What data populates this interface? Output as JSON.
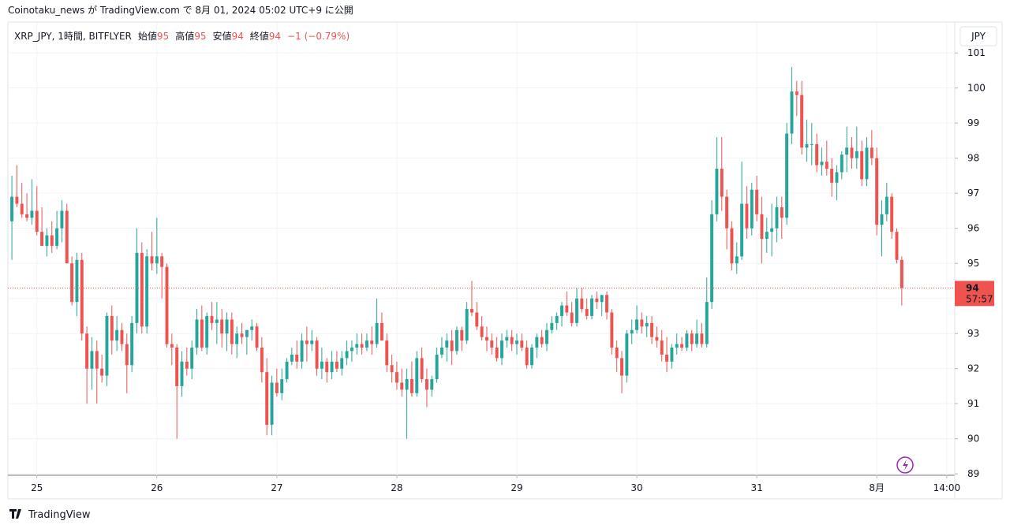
{
  "chart_data": {
    "type": "candlestick",
    "published": "Coinotaku_news が TradingView.com で 8月 01, 2024 05:02 UTC+9 に公開",
    "symbol": "XRP_JPY, 1時間, BITFLYER",
    "legend": [
      {
        "label": "始値",
        "value": "95"
      },
      {
        "label": "高値",
        "value": "95"
      },
      {
        "label": "安値",
        "value": "94"
      },
      {
        "label": "終値",
        "value": "94"
      }
    ],
    "change": "−1 (−0.79%)",
    "currency": "JPY",
    "price_label": {
      "value": 94.3,
      "label": "94"
    },
    "countdown": "57:57",
    "brand": "TradingView",
    "up_color": "#26a69a",
    "down_color": "#ef5350",
    "grid": true,
    "ylim": [
      88.96,
      101.88
    ],
    "yticks": [
      89,
      90,
      91,
      92,
      93,
      94,
      95,
      96,
      97,
      98,
      99,
      100,
      101
    ],
    "xlim": [
      -0.8,
      188.6
    ],
    "xticks": [
      {
        "value": 5,
        "label": "25"
      },
      {
        "value": 29,
        "label": "26"
      },
      {
        "value": 53,
        "label": "27"
      },
      {
        "value": 77,
        "label": "28"
      },
      {
        "value": 101,
        "label": "29"
      },
      {
        "value": 125,
        "label": "30"
      },
      {
        "value": 149,
        "label": "31"
      },
      {
        "value": 173,
        "label": "8月"
      },
      {
        "value": 187,
        "label": "14:00"
      }
    ],
    "ohlc": [
      [
        96.2,
        97.5,
        95.1,
        96.9
      ],
      [
        96.9,
        97.8,
        96.6,
        96.7
      ],
      [
        96.7,
        97.3,
        96.3,
        96.4
      ],
      [
        96.4,
        97.0,
        96.2,
        96.3
      ],
      [
        96.3,
        97.4,
        96.1,
        96.5
      ],
      [
        96.5,
        97.2,
        95.8,
        95.9
      ],
      [
        95.9,
        96.6,
        95.5,
        95.5
      ],
      [
        95.5,
        96.0,
        95.2,
        95.8
      ],
      [
        95.8,
        96.2,
        95.3,
        95.5
      ],
      [
        95.5,
        96.5,
        95.4,
        96.0
      ],
      [
        96.0,
        96.8,
        95.6,
        96.5
      ],
      [
        96.5,
        96.7,
        95.1,
        95.0
      ],
      [
        95.0,
        95.2,
        93.8,
        93.9
      ],
      [
        93.9,
        95.3,
        93.5,
        95.1
      ],
      [
        95.1,
        95.3,
        92.8,
        93.0
      ],
      [
        93.0,
        93.2,
        91.0,
        92.0
      ],
      [
        92.0,
        92.9,
        91.4,
        92.5
      ],
      [
        92.5,
        92.8,
        91.0,
        92.0
      ],
      [
        92.0,
        92.4,
        91.6,
        91.8
      ],
      [
        91.8,
        93.6,
        91.5,
        93.5
      ],
      [
        93.5,
        93.8,
        92.4,
        92.8
      ],
      [
        92.8,
        93.5,
        92.5,
        93.1
      ],
      [
        93.1,
        93.3,
        92.5,
        92.7
      ],
      [
        92.7,
        93.0,
        91.3,
        92.1
      ],
      [
        92.1,
        93.5,
        91.9,
        93.3
      ],
      [
        93.3,
        96.0,
        93.0,
        95.3
      ],
      [
        95.3,
        95.6,
        93.0,
        93.2
      ],
      [
        93.2,
        95.4,
        93.0,
        95.2
      ],
      [
        95.2,
        95.9,
        94.8,
        95.0
      ],
      [
        95.0,
        96.3,
        94.7,
        95.2
      ],
      [
        95.2,
        95.3,
        94.0,
        94.9
      ],
      [
        94.9,
        95.0,
        92.6,
        92.7
      ],
      [
        92.7,
        93.0,
        92.1,
        92.6
      ],
      [
        92.6,
        92.7,
        90.0,
        91.5
      ],
      [
        91.5,
        92.5,
        91.2,
        92.2
      ],
      [
        92.2,
        92.6,
        91.8,
        92.0
      ],
      [
        92.0,
        92.8,
        91.7,
        92.6
      ],
      [
        92.6,
        93.7,
        92.4,
        93.4
      ],
      [
        93.4,
        93.8,
        92.5,
        92.6
      ],
      [
        92.6,
        93.6,
        92.4,
        93.5
      ],
      [
        93.5,
        93.9,
        93.1,
        93.3
      ],
      [
        93.3,
        93.9,
        92.7,
        93.4
      ],
      [
        93.4,
        93.7,
        92.6,
        93.0
      ],
      [
        93.0,
        93.6,
        92.5,
        93.4
      ],
      [
        93.4,
        93.6,
        92.4,
        92.7
      ],
      [
        92.7,
        93.2,
        92.3,
        93.0
      ],
      [
        93.0,
        93.3,
        92.7,
        92.9
      ],
      [
        92.9,
        93.1,
        92.4,
        93.1
      ],
      [
        93.1,
        93.4,
        92.8,
        93.2
      ],
      [
        93.2,
        93.3,
        92.5,
        92.6
      ],
      [
        92.6,
        92.9,
        91.6,
        91.9
      ],
      [
        91.9,
        92.3,
        90.1,
        90.4
      ],
      [
        90.4,
        91.8,
        90.1,
        91.6
      ],
      [
        91.6,
        92.0,
        91.2,
        91.3
      ],
      [
        91.3,
        92.0,
        91.1,
        91.7
      ],
      [
        91.7,
        92.3,
        91.6,
        92.2
      ],
      [
        92.2,
        92.6,
        92.1,
        92.4
      ],
      [
        92.4,
        92.8,
        92.0,
        92.2
      ],
      [
        92.2,
        93.0,
        92.0,
        92.8
      ],
      [
        92.8,
        93.2,
        92.2,
        92.7
      ],
      [
        92.7,
        93.1,
        92.5,
        92.8
      ],
      [
        92.8,
        92.9,
        91.8,
        92.0
      ],
      [
        92.0,
        92.6,
        91.7,
        92.2
      ],
      [
        92.2,
        92.3,
        91.6,
        91.9
      ],
      [
        91.9,
        92.5,
        91.7,
        92.2
      ],
      [
        92.2,
        92.5,
        91.9,
        92.0
      ],
      [
        92.0,
        92.5,
        91.8,
        92.3
      ],
      [
        92.3,
        92.8,
        92.1,
        92.5
      ],
      [
        92.5,
        92.8,
        92.2,
        92.6
      ],
      [
        92.6,
        93.0,
        92.4,
        92.7
      ],
      [
        92.7,
        93.0,
        92.4,
        92.6
      ],
      [
        92.6,
        93.0,
        92.5,
        92.8
      ],
      [
        92.8,
        93.2,
        92.4,
        92.7
      ],
      [
        92.7,
        94.0,
        92.6,
        93.3
      ],
      [
        93.3,
        93.6,
        92.8,
        92.8
      ],
      [
        92.8,
        93.0,
        91.9,
        92.1
      ],
      [
        92.1,
        92.4,
        91.6,
        91.9
      ],
      [
        91.9,
        92.2,
        91.4,
        91.6
      ],
      [
        91.6,
        92.0,
        91.2,
        91.4
      ],
      [
        91.4,
        92.0,
        90.0,
        91.7
      ],
      [
        91.7,
        92.2,
        91.2,
        91.3
      ],
      [
        91.3,
        92.5,
        91.2,
        92.3
      ],
      [
        92.3,
        92.6,
        91.6,
        91.7
      ],
      [
        91.7,
        92.0,
        90.9,
        91.4
      ],
      [
        91.4,
        91.8,
        91.2,
        91.7
      ],
      [
        91.7,
        92.6,
        91.6,
        92.4
      ],
      [
        92.4,
        92.9,
        92.3,
        92.6
      ],
      [
        92.6,
        93.0,
        92.2,
        92.8
      ],
      [
        92.8,
        93.1,
        92.1,
        92.5
      ],
      [
        92.5,
        93.2,
        92.4,
        93.1
      ],
      [
        93.1,
        93.2,
        92.5,
        92.8
      ],
      [
        92.8,
        93.9,
        92.7,
        93.7
      ],
      [
        93.7,
        94.5,
        93.5,
        93.6
      ],
      [
        93.6,
        93.9,
        93.1,
        93.2
      ],
      [
        93.2,
        93.5,
        92.8,
        92.9
      ],
      [
        92.9,
        93.2,
        92.5,
        92.8
      ],
      [
        92.8,
        93.0,
        92.4,
        92.6
      ],
      [
        92.6,
        92.9,
        92.2,
        92.3
      ],
      [
        92.3,
        93.0,
        92.1,
        92.8
      ],
      [
        92.8,
        93.1,
        92.6,
        92.9
      ],
      [
        92.9,
        93.1,
        92.5,
        92.7
      ],
      [
        92.7,
        93.0,
        92.4,
        92.8
      ],
      [
        92.8,
        93.0,
        92.5,
        92.6
      ],
      [
        92.6,
        92.8,
        92.0,
        92.1
      ],
      [
        92.1,
        92.7,
        92.0,
        92.6
      ],
      [
        92.6,
        93.0,
        92.3,
        92.9
      ],
      [
        92.9,
        93.1,
        92.6,
        92.7
      ],
      [
        92.7,
        93.3,
        92.5,
        93.1
      ],
      [
        93.1,
        93.5,
        93.0,
        93.3
      ],
      [
        93.3,
        93.6,
        93.1,
        93.5
      ],
      [
        93.5,
        93.9,
        93.2,
        93.8
      ],
      [
        93.8,
        94.2,
        93.5,
        93.6
      ],
      [
        93.6,
        93.9,
        93.2,
        93.3
      ],
      [
        93.3,
        94.3,
        93.2,
        94.0
      ],
      [
        94.0,
        94.3,
        93.6,
        93.7
      ],
      [
        93.7,
        94.0,
        93.4,
        93.5
      ],
      [
        93.5,
        94.1,
        93.4,
        94.0
      ],
      [
        94.0,
        94.2,
        93.7,
        93.9
      ],
      [
        93.9,
        94.1,
        93.5,
        94.1
      ],
      [
        94.1,
        94.2,
        93.4,
        93.6
      ],
      [
        93.6,
        93.7,
        92.4,
        92.6
      ],
      [
        92.6,
        92.8,
        91.9,
        92.3
      ],
      [
        92.3,
        92.5,
        91.3,
        91.8
      ],
      [
        91.8,
        93.1,
        91.6,
        93.0
      ],
      [
        93.0,
        93.4,
        92.7,
        93.1
      ],
      [
        93.1,
        93.8,
        93.0,
        93.4
      ],
      [
        93.4,
        93.6,
        93.0,
        93.2
      ],
      [
        93.2,
        93.5,
        92.9,
        93.3
      ],
      [
        93.3,
        93.5,
        92.7,
        92.9
      ],
      [
        92.9,
        93.2,
        92.6,
        92.8
      ],
      [
        92.8,
        93.1,
        92.2,
        92.4
      ],
      [
        92.4,
        92.9,
        91.9,
        92.2
      ],
      [
        92.2,
        92.7,
        92.0,
        92.6
      ],
      [
        92.6,
        93.0,
        92.4,
        92.7
      ],
      [
        92.7,
        92.9,
        92.5,
        92.6
      ],
      [
        92.6,
        93.1,
        92.5,
        93.0
      ],
      [
        93.0,
        93.1,
        92.5,
        92.7
      ],
      [
        92.7,
        93.4,
        92.6,
        93.0
      ],
      [
        93.0,
        93.3,
        92.6,
        92.7
      ],
      [
        92.7,
        94.6,
        92.6,
        93.9
      ],
      [
        93.9,
        96.8,
        93.7,
        96.4
      ],
      [
        96.4,
        98.6,
        96.2,
        97.7
      ],
      [
        97.7,
        98.6,
        96.5,
        96.9
      ],
      [
        96.9,
        97.1,
        95.4,
        96.0
      ],
      [
        96.0,
        96.2,
        94.8,
        95.0
      ],
      [
        95.0,
        95.6,
        94.7,
        95.2
      ],
      [
        95.2,
        97.9,
        95.1,
        96.7
      ],
      [
        96.7,
        97.2,
        95.7,
        96.0
      ],
      [
        96.0,
        97.3,
        95.8,
        97.1
      ],
      [
        97.1,
        97.5,
        96.2,
        96.4
      ],
      [
        96.4,
        96.9,
        95.0,
        95.7
      ],
      [
        95.7,
        96.3,
        95.3,
        95.9
      ],
      [
        95.9,
        96.7,
        95.2,
        96.0
      ],
      [
        96.0,
        96.9,
        95.6,
        96.6
      ],
      [
        96.6,
        96.9,
        95.7,
        96.3
      ],
      [
        96.3,
        99.0,
        96.1,
        98.7
      ],
      [
        98.7,
        100.6,
        98.4,
        99.9
      ],
      [
        99.9,
        100.2,
        99.2,
        99.8
      ],
      [
        99.8,
        100.2,
        98.1,
        98.3
      ],
      [
        98.3,
        99.1,
        97.9,
        98.4
      ],
      [
        98.4,
        99.0,
        97.8,
        98.4
      ],
      [
        98.4,
        98.7,
        97.6,
        97.8
      ],
      [
        97.8,
        98.3,
        97.5,
        97.9
      ],
      [
        97.9,
        98.5,
        97.5,
        97.7
      ],
      [
        97.7,
        98.0,
        96.9,
        97.3
      ],
      [
        97.3,
        97.8,
        96.8,
        97.6
      ],
      [
        97.6,
        98.2,
        97.4,
        98.1
      ],
      [
        98.1,
        98.9,
        97.6,
        98.3
      ],
      [
        98.3,
        98.6,
        97.7,
        98.0
      ],
      [
        98.0,
        98.9,
        97.7,
        98.2
      ],
      [
        98.2,
        98.5,
        97.2,
        97.4
      ],
      [
        97.4,
        98.6,
        97.2,
        98.3
      ],
      [
        98.3,
        98.8,
        97.8,
        98.0
      ],
      [
        98.0,
        98.3,
        95.8,
        96.1
      ],
      [
        96.1,
        96.8,
        95.2,
        96.4
      ],
      [
        96.4,
        97.3,
        96.2,
        96.9
      ],
      [
        96.9,
        97.0,
        95.7,
        95.9
      ],
      [
        95.9,
        96.0,
        95.0,
        95.1
      ],
      [
        95.1,
        95.2,
        93.8,
        94.3
      ]
    ]
  }
}
